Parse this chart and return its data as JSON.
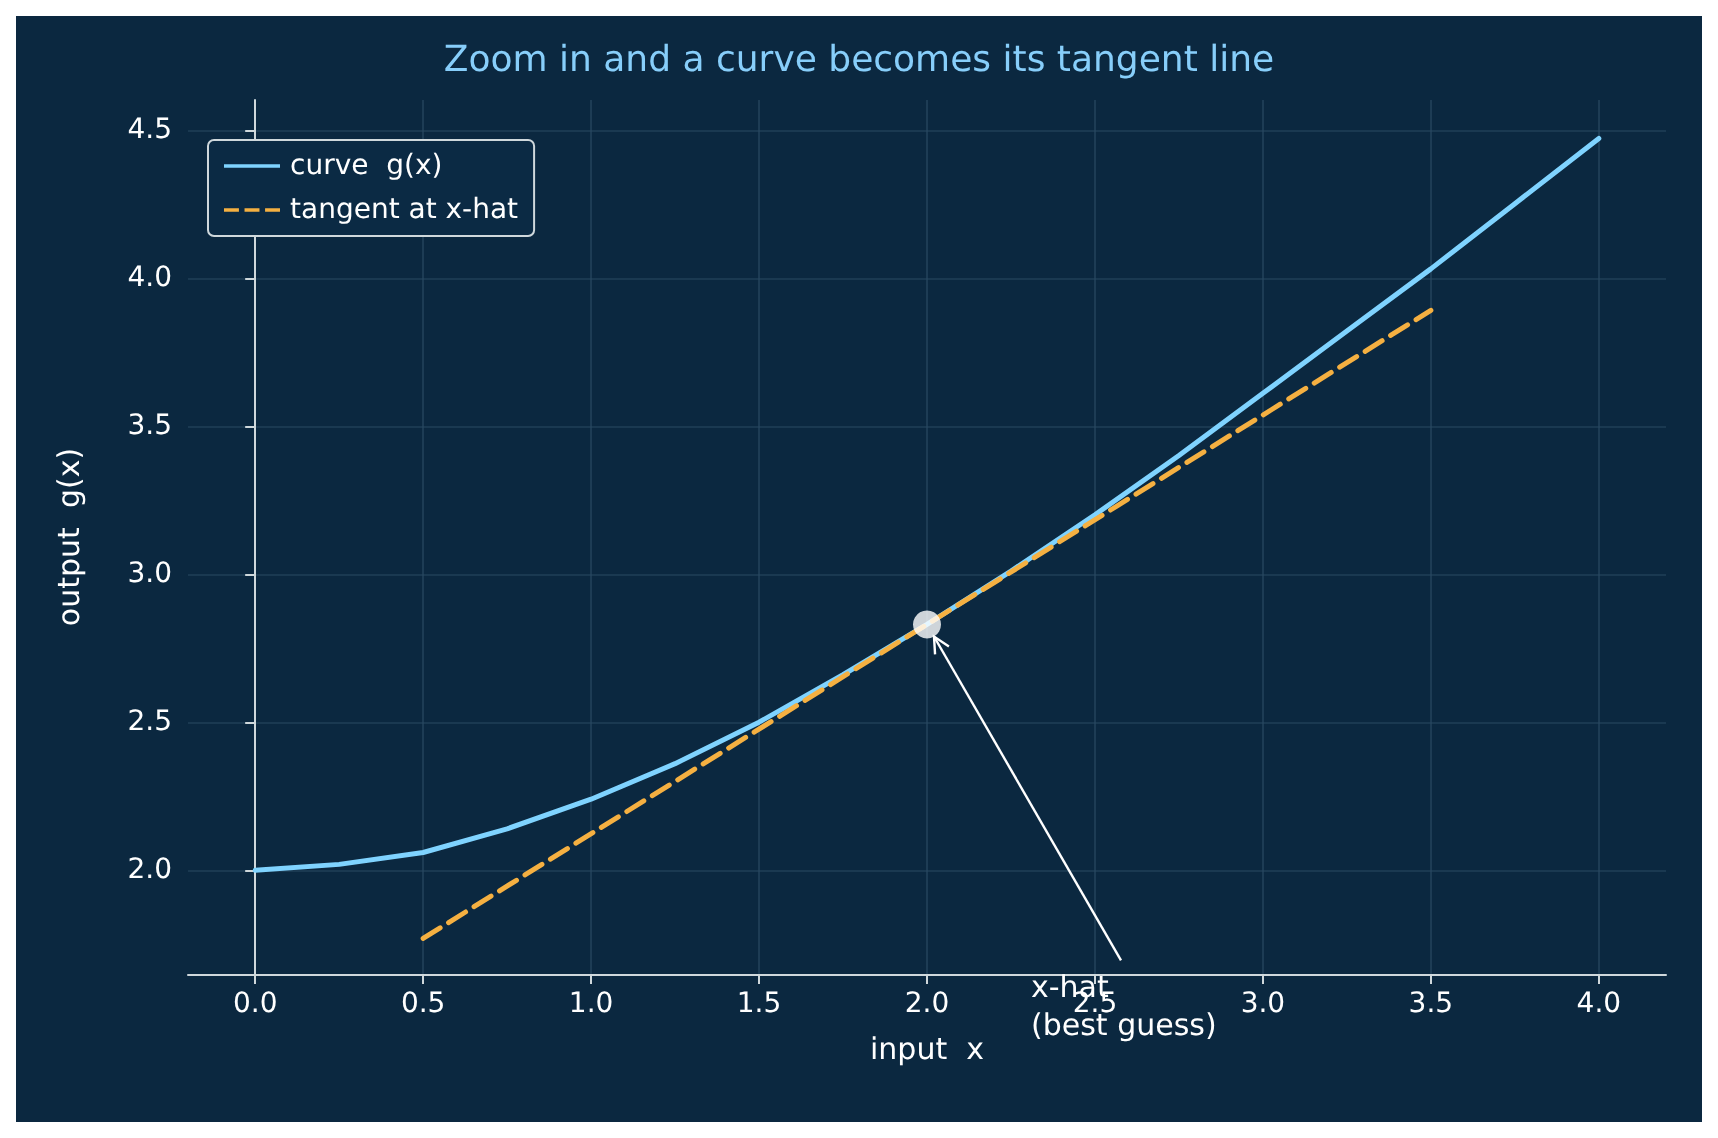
{
  "chart_data": {
    "type": "line",
    "title": "Zoom in and a curve becomes its tangent line",
    "xlabel": "input  x",
    "ylabel": "output  g(x)",
    "xlim": [
      -0.2,
      4.2
    ],
    "xticks": [
      {
        "value": 0,
        "label": "0.0"
      },
      0.5,
      {
        "value": 1,
        "label": "1.0"
      },
      1.5,
      {
        "value": 2,
        "label": "2.0"
      },
      2.5,
      {
        "value": 3,
        "label": "3.0"
      },
      3.5,
      {
        "value": 4,
        "label": "4.0"
      }
    ],
    "ylim": [
      1.65,
      4.6
    ],
    "yticks": [
      {
        "value": 2,
        "label": "2.0"
      },
      2.5,
      {
        "value": 3,
        "label": "3.0"
      },
      3.5,
      {
        "value": 4,
        "label": "4.0"
      },
      4.5
    ],
    "grid": true,
    "legend": "top left",
    "series": [
      {
        "name": "curve  g(x)",
        "color": "#7fd3ff",
        "type": "line",
        "line_style": "solid",
        "x": [
          0,
          0.25,
          0.5,
          0.75,
          1,
          1.25,
          1.5,
          1.75,
          2,
          2.25,
          2.5,
          2.75,
          3,
          3.25,
          3.5,
          3.75,
          4
        ],
        "values": [
          2.0,
          2.02,
          2.06,
          2.14,
          2.24,
          2.36,
          2.5,
          2.66,
          2.83,
          3.01,
          3.2,
          3.4,
          3.61,
          3.82,
          4.03,
          4.25,
          4.47
        ]
      },
      {
        "name": "tangent at x-hat",
        "color": "#f5b041",
        "type": "line",
        "line_style": "dashed",
        "x": [
          0.5,
          3.5
        ],
        "values": [
          1.77,
          3.89
        ]
      },
      {
        "color": "#ffffff",
        "type": "scatter",
        "marker": "circle",
        "x": [
          2
        ],
        "values": [
          2.83
        ]
      }
    ],
    "annotations": [
      {
        "text": "x-hat\n(best guess)",
        "x": 2,
        "y": 2.83
      }
    ]
  }
}
